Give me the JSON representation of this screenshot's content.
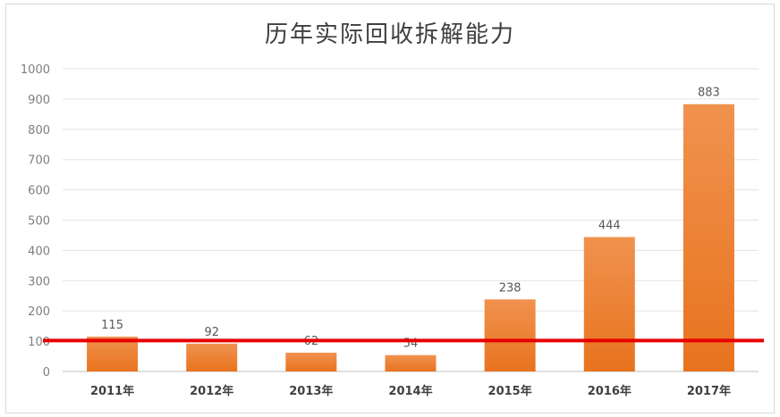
{
  "chart_data": {
    "type": "bar",
    "title": "历年实际回收拆解能力",
    "categories": [
      "2011年",
      "2012年",
      "2013年",
      "2014年",
      "2015年",
      "2016年",
      "2017年"
    ],
    "values": [
      115,
      92,
      62,
      54,
      238,
      444,
      883
    ],
    "ylim": [
      0,
      1000
    ],
    "yticks": [
      0,
      100,
      200,
      300,
      400,
      500,
      600,
      700,
      800,
      900,
      1000
    ],
    "grid": true,
    "bar_color_top": "#f0924f",
    "bar_color_bottom": "#e8731e",
    "reference_line": {
      "value": 102,
      "color": "#e60000"
    }
  }
}
